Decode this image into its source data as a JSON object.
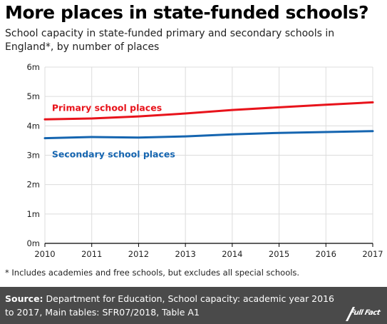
{
  "title": "More places in state-funded schools?",
  "subtitle": "School capacity in state-funded primary and secondary schools in England*, by number of places",
  "footnote": "* Includes academies and free schools, but excludes all special schools.",
  "source": {
    "label": "Source:",
    "text": "Department for Education, School capacity: academic year 2016 to 2017, Main tables: SFR07/2018, Table A1"
  },
  "logo": {
    "text": "Full Fact"
  },
  "colors": {
    "primary": "#e8131b",
    "secondary": "#1565b0",
    "grid": "#dcdcdc",
    "axis": "#000000"
  },
  "chart_data": {
    "type": "line",
    "x": [
      2010,
      2011,
      2012,
      2013,
      2014,
      2015,
      2016,
      2017
    ],
    "xlim": [
      2010,
      2017
    ],
    "ylim": [
      0,
      6000000
    ],
    "yticks": [
      0,
      1000000,
      2000000,
      3000000,
      4000000,
      5000000,
      6000000
    ],
    "ytick_labels": [
      "0m",
      "1m",
      "2m",
      "3m",
      "4m",
      "5m",
      "6m"
    ],
    "xtick_labels": [
      "2010",
      "2011",
      "2012",
      "2013",
      "2014",
      "2015",
      "2016",
      "2017"
    ],
    "grid": true,
    "legend": "inline labels",
    "series": [
      {
        "name": "Primary school places",
        "color": "#e8131b",
        "values": [
          4220000,
          4250000,
          4320000,
          4420000,
          4540000,
          4630000,
          4720000,
          4800000
        ]
      },
      {
        "name": "Secondary school places",
        "color": "#1565b0",
        "values": [
          3580000,
          3620000,
          3600000,
          3640000,
          3710000,
          3760000,
          3790000,
          3820000
        ]
      }
    ]
  }
}
